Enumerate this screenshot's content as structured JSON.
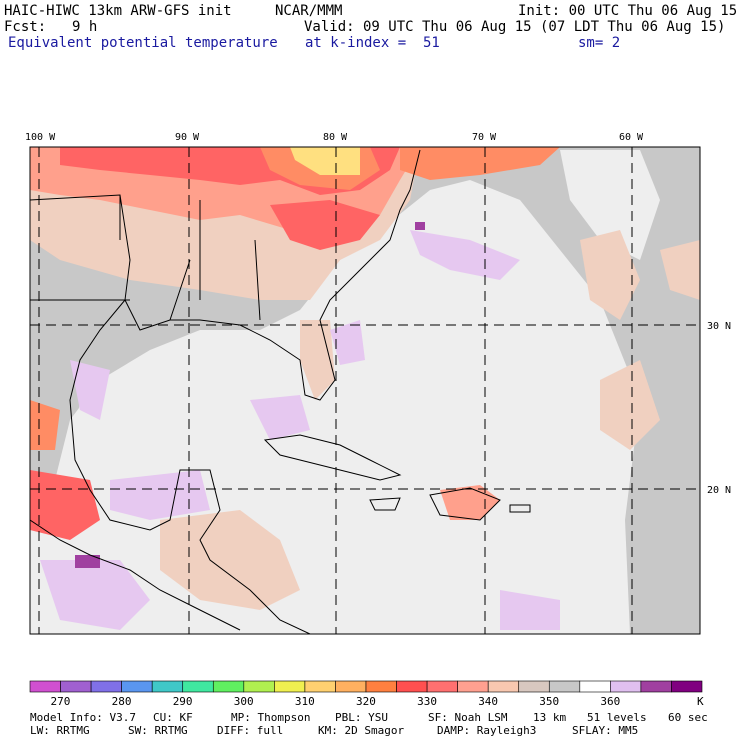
{
  "header": {
    "model": "HAIC-HIWC 13km ARW-GFS init",
    "org": "NCAR/MMM",
    "init": "Init: 00 UTC Thu 06 Aug 15",
    "fcst_label": "Fcst:",
    "fcst_value": "9 h",
    "valid": "Valid: 09 UTC Thu 06 Aug 15 (07 LDT Thu 06 Aug 15)",
    "field": "Equivalent potential temperature",
    "level": "at k-index =  51",
    "smoothing": "sm= 2"
  },
  "map": {
    "lon_labels": [
      "100 W",
      "90 W",
      "80 W",
      "70 W",
      "60 W"
    ],
    "lat_labels": [
      "30 N",
      "20 N"
    ],
    "colors": {
      "ocean_light": "#eeeeee",
      "gray": "#c8c8c8",
      "light_tan": "#f0d0c0",
      "salmon": "#ffa08c",
      "red": "#ff6464",
      "orange": "#ff8c64",
      "yellow": "#ffe080",
      "lavender": "#e6c8f0",
      "purple": "#a040a0"
    }
  },
  "colorbar": {
    "colors": [
      "#d050d0",
      "#a060d0",
      "#8070e8",
      "#5a96f0",
      "#40c8c8",
      "#40e8a0",
      "#60f060",
      "#b0f050",
      "#f0f050",
      "#ffd070",
      "#ffb060",
      "#ff8040",
      "#ff5050",
      "#ff7070",
      "#ffa090",
      "#f8c8b0",
      "#d8c8c0",
      "#c8c8c8",
      "#ffffff",
      "#e0c0f0",
      "#a040a0",
      "#800080"
    ],
    "tick_labels": [
      "270",
      "280",
      "290",
      "300",
      "310",
      "320",
      "330",
      "340",
      "350",
      "360"
    ],
    "units": "K"
  },
  "footer": {
    "line1": [
      "Model Info: V3.7",
      "CU: KF",
      "MP: Thompson",
      "PBL: YSU",
      "SF: Noah LSM",
      "13 km",
      "51 levels",
      "60 sec"
    ],
    "line2": [
      "LW: RRTMG",
      "SW: RRTMG",
      "DIFF: full",
      "KM: 2D Smagor",
      "DAMP: Rayleigh3",
      "SFLAY: MM5"
    ]
  }
}
